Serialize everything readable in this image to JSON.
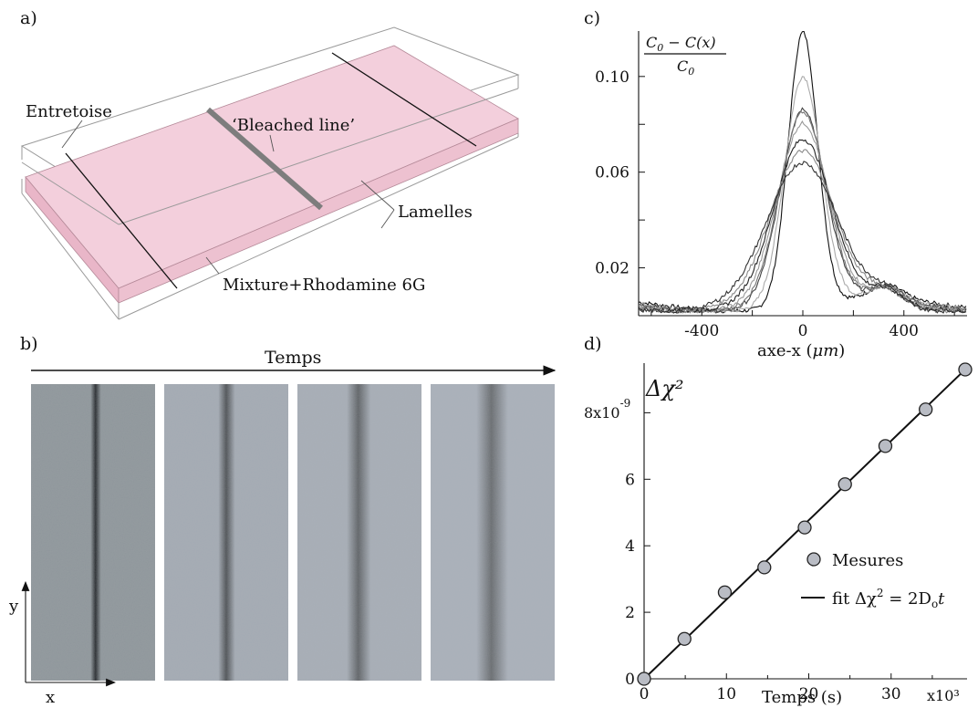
{
  "panel_a": {
    "label": "a)",
    "annotations": {
      "spacer": "Entretoise",
      "bleached": "‘Bleached line’",
      "coverslips": "Lamelles",
      "mixture": "Mixture+Rhodamine 6G"
    },
    "colors": {
      "mixture_fill": "#f3cfdc",
      "bleach_line": "#7d7d7d"
    }
  },
  "panel_b": {
    "label": "b)",
    "time_label": "Temps",
    "axis_x": "x",
    "axis_y": "y",
    "frames": [
      {
        "line_darkness": 1.0,
        "line_width": 1.0
      },
      {
        "line_darkness": 0.55,
        "line_width": 1.6
      },
      {
        "line_darkness": 0.35,
        "line_width": 2.3
      },
      {
        "line_darkness": 0.25,
        "line_width": 3.0
      }
    ]
  },
  "chart_data": [
    {
      "id": "c",
      "type": "line",
      "panel_label": "c)",
      "xlabel_text": "axe-x (",
      "xlabel_unit": "μm",
      "xlabel_close": ")",
      "ylabel_numerator": "C",
      "ylabel_numerator_sub": "0",
      "ylabel_numerator_rest": " − C(x)",
      "ylabel_denominator": "C",
      "ylabel_denominator_sub": "0",
      "xlim": [
        -650,
        650
      ],
      "ylim": [
        0.0,
        0.119
      ],
      "xticks": [
        -400,
        0,
        400
      ],
      "yticks": [
        0.02,
        0.06,
        0.1
      ],
      "ytick_labels": [
        "0.02",
        "0.06",
        "0.10"
      ],
      "xtick_labels": [
        "-400",
        "0",
        "400"
      ],
      "series_peaks": [
        0.118,
        0.099,
        0.085,
        0.083,
        0.078,
        0.071,
        0.066,
        0.061
      ],
      "series_widths": [
        58,
        72,
        88,
        92,
        100,
        112,
        124,
        138
      ],
      "series_colors": [
        "#111111",
        "#aaaaaa",
        "#444444",
        "#777777",
        "#999999",
        "#222222",
        "#888888",
        "#333333"
      ]
    },
    {
      "id": "d",
      "type": "scatter",
      "panel_label": "d)",
      "ylabel": "Δχ²",
      "xlabel": "Temps (s)",
      "x_multiplier": "x10³",
      "y_multiplier_base": "8x10",
      "y_multiplier_exp": "-9",
      "xlim": [
        0,
        39
      ],
      "ylim": [
        0,
        9.3
      ],
      "xticks": [
        0,
        10,
        20,
        30
      ],
      "xtick_labels": [
        "0",
        "10",
        "20",
        "30"
      ],
      "yticks": [
        0,
        2,
        4,
        6
      ],
      "ytick_labels": [
        "0",
        "2",
        "4",
        "6"
      ],
      "points": [
        [
          0,
          0.0
        ],
        [
          4.9,
          1.2
        ],
        [
          9.8,
          2.6
        ],
        [
          14.6,
          3.35
        ],
        [
          19.5,
          4.55
        ],
        [
          24.4,
          5.85
        ],
        [
          29.3,
          7.0
        ],
        [
          34.2,
          8.1
        ],
        [
          39.0,
          9.3
        ]
      ],
      "fit": {
        "slope": 0.2385,
        "intercept": 0.0
      },
      "legend": {
        "measures": "Mesures",
        "fit_prefix": "fit Δχ",
        "fit_sup": "2",
        "fit_eq": " = 2D",
        "fit_sub": "o",
        "fit_t": "t"
      }
    }
  ]
}
